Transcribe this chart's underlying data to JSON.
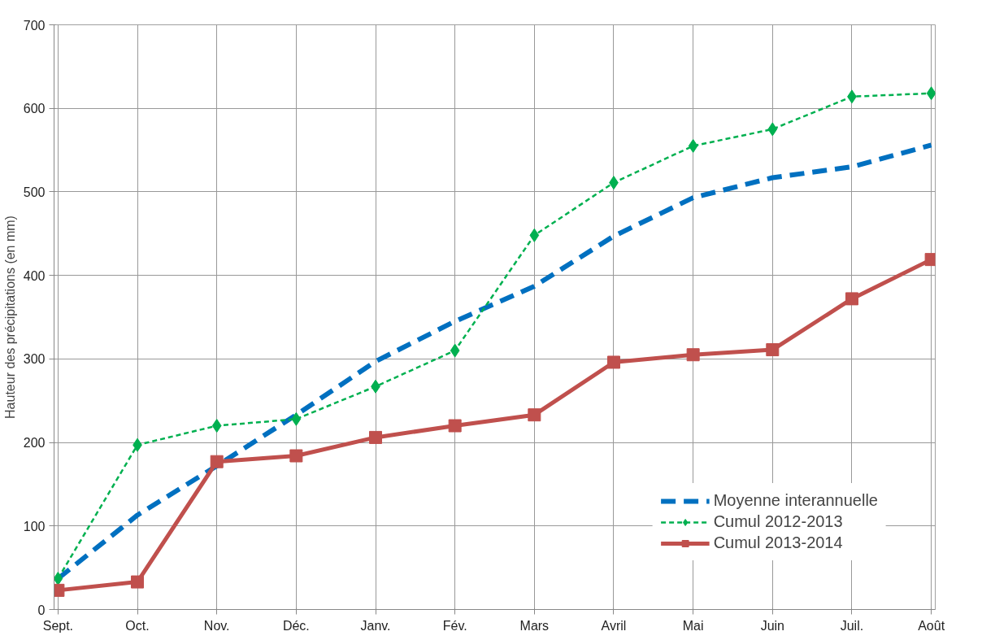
{
  "chart_data": {
    "type": "line",
    "ylabel": "Hauteur des précipitations (en mm)",
    "categories": [
      "Sept.",
      "Oct.",
      "Nov.",
      "Déc.",
      "Janv.",
      "Fév.",
      "Mars",
      "Avril",
      "Mai",
      "Juin",
      "Juil.",
      "Août"
    ],
    "series": [
      {
        "name": "Moyenne interannuelle",
        "color": "#0070c0",
        "marker": "none",
        "line_style": "dashed",
        "values": [
          37,
          113,
          172,
          233,
          297,
          345,
          387,
          447,
          493,
          517,
          530,
          556
        ]
      },
      {
        "name": "Cumul 2012-2013",
        "color": "#00b050",
        "marker": "diamond",
        "line_style": "dotted",
        "values": [
          37,
          197,
          220,
          228,
          267,
          310,
          448,
          511,
          555,
          575,
          614,
          618
        ]
      },
      {
        "name": "Cumul 2013-2014",
        "color": "#c0504d",
        "marker": "square",
        "line_style": "solid",
        "values": [
          23,
          33,
          177,
          184,
          206,
          220,
          233,
          296,
          305,
          311,
          372,
          419
        ]
      }
    ],
    "ylim": [
      0,
      700
    ],
    "yticks": [
      0,
      100,
      200,
      300,
      400,
      500,
      600,
      700
    ],
    "grid": true,
    "legend": "bottom right"
  }
}
